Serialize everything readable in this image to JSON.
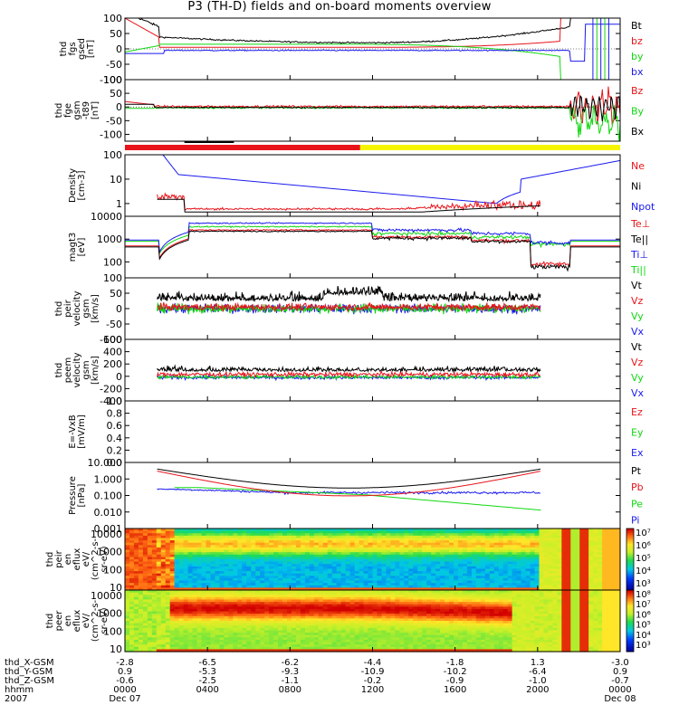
{
  "title": "P3 (TH-D) fields and on-board moments overview",
  "colors": {
    "black": "#000000",
    "red": "#e8141b",
    "green": "#11d811",
    "blue": "#1a1aee",
    "yellow": "#f5f500"
  },
  "chart_data": [
    {
      "id": "fgs",
      "type": "line",
      "ylabel": [
        "thd",
        "fgs",
        "gsed",
        "[nT]"
      ],
      "ylim": [
        -100,
        100
      ],
      "ticks": [
        "100",
        "50",
        "0",
        "-50",
        "-100"
      ],
      "legend": [
        {
          "label": "Bt",
          "color": "black"
        },
        {
          "label": "bz",
          "color": "red"
        },
        {
          "label": "by",
          "color": "green"
        },
        {
          "label": "bx",
          "color": "blue"
        }
      ]
    },
    {
      "id": "fge",
      "type": "line",
      "ylabel": [
        "thd",
        "fge",
        "gsm",
        "-t89",
        "[nT]"
      ],
      "ylim": [
        -125,
        100
      ],
      "ticks": [
        "100",
        "50",
        "0",
        "-50",
        "-100"
      ],
      "legend": [
        {
          "label": "Bz",
          "color": "red"
        },
        {
          "label": "By",
          "color": "green"
        },
        {
          "label": "Bx",
          "color": "black"
        }
      ]
    },
    {
      "id": "dens",
      "type": "line",
      "ylabel": [
        "Density",
        "[cm-3]"
      ],
      "ylim": [
        0.3,
        100
      ],
      "scale": "log",
      "ticks": [
        "100",
        "10",
        "1"
      ],
      "legend": [
        {
          "label": "Ne",
          "color": "red"
        },
        {
          "label": "Ni",
          "color": "black"
        },
        {
          "label": "Npot",
          "color": "blue"
        }
      ]
    },
    {
      "id": "temp",
      "type": "line",
      "ylabel": [
        "magt3",
        "[eV]"
      ],
      "ylim": [
        20,
        10000
      ],
      "scale": "log",
      "ticks": [
        "10000",
        "1000",
        "100"
      ],
      "legend": [
        {
          "label": "Te⊥",
          "color": "red"
        },
        {
          "label": "Te||",
          "color": "black"
        },
        {
          "label": "Ti⊥",
          "color": "blue"
        },
        {
          "label": "Ti||",
          "color": "green"
        }
      ]
    },
    {
      "id": "peir",
      "type": "line",
      "ylabel": [
        "thd",
        "peir",
        "velocity",
        "gsm",
        "[km/s]"
      ],
      "ylim": [
        -100,
        100
      ],
      "ticks": [
        "100",
        "50",
        "0",
        "-50",
        "-100"
      ],
      "legend": [
        {
          "label": "Vt",
          "color": "black"
        },
        {
          "label": "Vz",
          "color": "red"
        },
        {
          "label": "Vy",
          "color": "green"
        },
        {
          "label": "Vx",
          "color": "blue"
        }
      ]
    },
    {
      "id": "peem",
      "type": "line",
      "ylabel": [
        "thd",
        "peem",
        "velocity",
        "gsm",
        "[km/s]"
      ],
      "ylim": [
        -400,
        600
      ],
      "ticks": [
        "600",
        "400",
        "200",
        "0",
        "-200",
        "-400"
      ],
      "legend": [
        {
          "label": "Vt",
          "color": "black"
        },
        {
          "label": "Vz",
          "color": "red"
        },
        {
          "label": "Vy",
          "color": "green"
        },
        {
          "label": "Vx",
          "color": "blue"
        }
      ]
    },
    {
      "id": "efield",
      "type": "line",
      "ylabel": [
        "E=-VxB",
        "[mV/m]"
      ],
      "ylim": [
        0,
        1
      ],
      "ticks": [
        "1.0",
        "0.8",
        "0.6",
        "0.4",
        "0.2",
        "0.0"
      ],
      "legend": [
        {
          "label": "Ez",
          "color": "red"
        },
        {
          "label": "Ey",
          "color": "green"
        },
        {
          "label": "Ex",
          "color": "blue"
        }
      ]
    },
    {
      "id": "pres",
      "type": "line",
      "ylabel": [
        "Pressure",
        "[nPa]"
      ],
      "ylim": [
        0.001,
        10
      ],
      "scale": "log",
      "ticks": [
        "10.000",
        "1.000",
        "0.100",
        "0.010",
        "0.001"
      ],
      "legend": [
        {
          "label": "Pt",
          "color": "black"
        },
        {
          "label": "Pb",
          "color": "red"
        },
        {
          "label": "Pe",
          "color": "green"
        },
        {
          "label": "Pi",
          "color": "blue"
        }
      ]
    },
    {
      "id": "peir_spec",
      "type": "heatmap",
      "ylabel": [
        "thd",
        "peir",
        "en",
        "eflux",
        "eV/",
        "(cm^2-s-",
        "sr-eV)"
      ],
      "ylim": [
        7,
        20000
      ],
      "scale": "log",
      "ticks": [
        "10000",
        "1000",
        "100",
        "10"
      ],
      "colorbar": {
        "min_exp": 3,
        "max_exp": 7,
        "labels": [
          "10⁷",
          "10⁶",
          "10⁵",
          "10⁴",
          "10³"
        ]
      }
    },
    {
      "id": "peer_spec",
      "type": "heatmap",
      "ylabel": [
        "thd",
        "peer",
        "en",
        "eflux",
        "eV/",
        "(cm^2-s-",
        "sr-eV)"
      ],
      "ylim": [
        7,
        20000
      ],
      "scale": "log",
      "ticks": [
        "10000",
        "1000",
        "100",
        "10"
      ],
      "colorbar": {
        "min_exp": 3,
        "max_exp": 8,
        "labels": [
          "10⁸",
          "10⁷",
          "10⁶",
          "10⁵",
          "10⁴",
          "10³"
        ]
      }
    }
  ],
  "mode_bar": {
    "red_range": [
      0,
      0.475
    ],
    "yellow_range": [
      0.475,
      1.0
    ]
  },
  "x_axis": {
    "hours": [
      0,
      4,
      8,
      12,
      16,
      20,
      24
    ],
    "row_labels": [
      "thd_X-GSM",
      "thd_Y-GSM",
      "thd_Z-GSM",
      "hhmm",
      "2007"
    ],
    "columns": [
      [
        "-2.8",
        "0.9",
        "-0.6",
        "0000",
        "Dec 07"
      ],
      [
        "-6.5",
        "-5.3",
        "-2.5",
        "0400",
        ""
      ],
      [
        "-6.2",
        "-9.3",
        "-1.1",
        "0800",
        ""
      ],
      [
        "-4.4",
        "-10.9",
        "-0.2",
        "1200",
        ""
      ],
      [
        "-1.8",
        "-10.2",
        "-0.9",
        "1600",
        ""
      ],
      [
        "1.3",
        "-6.4",
        "-1.0",
        "2000",
        ""
      ],
      [
        "-3.0",
        "0.9",
        "-0.7",
        "0000",
        "Dec 08"
      ]
    ]
  }
}
